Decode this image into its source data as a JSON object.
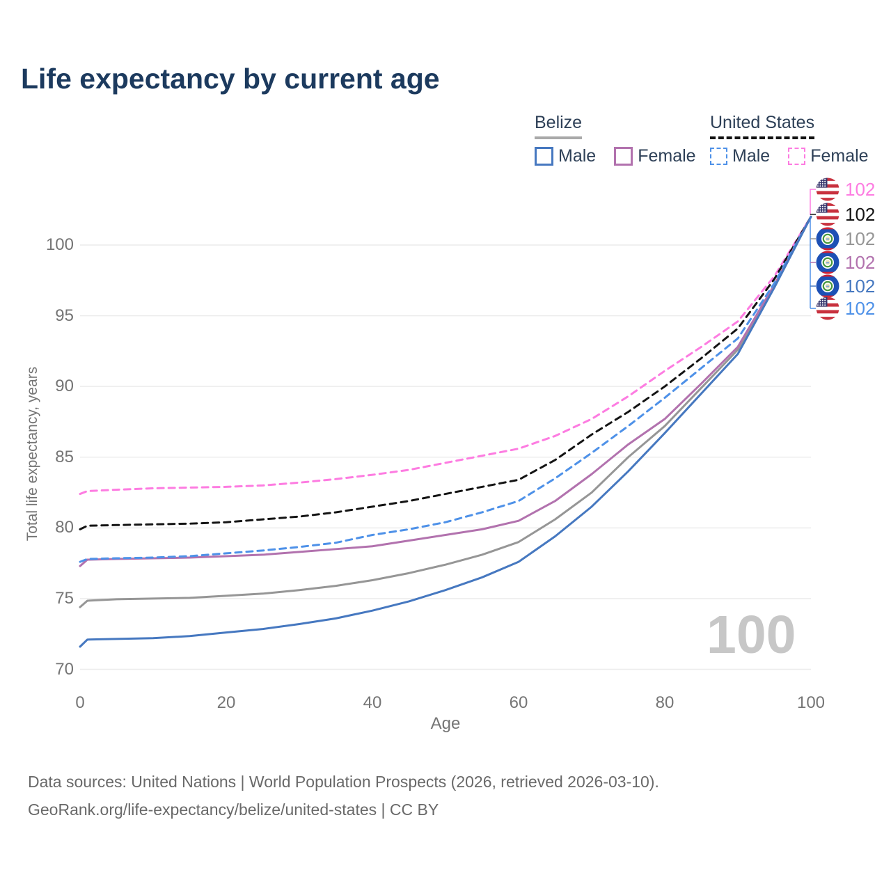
{
  "title": "Life expectancy by current age",
  "legend": {
    "groups": [
      {
        "name": "Belize",
        "line_style": "solid",
        "underline_color": "#a9a9a9",
        "items": [
          {
            "label": "Male",
            "color": "#4678c0"
          },
          {
            "label": "Female",
            "color": "#b272ae"
          }
        ]
      },
      {
        "name": "United States",
        "line_style": "dashed",
        "underline_color": "#121212",
        "items": [
          {
            "label": "Male",
            "color": "#4e91e8"
          },
          {
            "label": "Female",
            "color": "#fd7ce1"
          }
        ]
      }
    ]
  },
  "chart_data": {
    "type": "line",
    "title": "Life expectancy by current age",
    "xlabel": "Age",
    "ylabel": "Total life expectancy, years",
    "xlim": [
      0,
      100
    ],
    "ylim": [
      70,
      102
    ],
    "x_ticks": [
      0,
      20,
      40,
      60,
      80,
      100
    ],
    "y_ticks": [
      70,
      75,
      80,
      85,
      90,
      95,
      100
    ],
    "grid": "horizontal",
    "legend_position": "top-right",
    "x": [
      0,
      1,
      5,
      10,
      15,
      20,
      25,
      30,
      35,
      40,
      45,
      50,
      55,
      60,
      65,
      70,
      75,
      80,
      85,
      90,
      95,
      100
    ],
    "series": [
      {
        "name": "United States Female",
        "country": "United States",
        "sex": "female",
        "color": "#fd7ce1",
        "dash": true,
        "values": [
          82.4,
          82.6,
          82.7,
          82.8,
          82.85,
          82.9,
          83.0,
          83.2,
          83.45,
          83.75,
          84.1,
          84.6,
          85.1,
          85.6,
          86.5,
          87.7,
          89.3,
          91.1,
          92.8,
          94.6,
          97.8,
          102
        ]
      },
      {
        "name": "United States Total",
        "country": "United States",
        "sex": "total",
        "color": "#141414",
        "dash": true,
        "values": [
          79.9,
          80.15,
          80.2,
          80.25,
          80.3,
          80.4,
          80.6,
          80.8,
          81.1,
          81.5,
          81.9,
          82.4,
          82.9,
          83.4,
          84.8,
          86.6,
          88.2,
          90.0,
          92.0,
          94.1,
          97.6,
          102
        ]
      },
      {
        "name": "Belize Total",
        "country": "Belize",
        "sex": "total",
        "color": "#969696",
        "dash": false,
        "values": [
          74.4,
          74.85,
          74.95,
          75.0,
          75.05,
          75.2,
          75.35,
          75.6,
          75.9,
          76.3,
          76.8,
          77.4,
          78.1,
          79.0,
          80.6,
          82.5,
          85.0,
          87.2,
          89.9,
          92.6,
          97.1,
          102
        ]
      },
      {
        "name": "Belize Female",
        "country": "Belize",
        "sex": "female",
        "color": "#b272ae",
        "dash": false,
        "values": [
          77.3,
          77.75,
          77.8,
          77.85,
          77.9,
          78.0,
          78.1,
          78.3,
          78.5,
          78.7,
          79.1,
          79.5,
          79.9,
          80.5,
          81.9,
          83.8,
          85.9,
          87.7,
          90.2,
          92.8,
          97.2,
          102
        ]
      },
      {
        "name": "United States Male",
        "country": "United States",
        "sex": "male",
        "color": "#4e91e8",
        "dash": true,
        "values": [
          77.6,
          77.8,
          77.85,
          77.9,
          78.0,
          78.2,
          78.4,
          78.65,
          78.95,
          79.5,
          79.9,
          80.4,
          81.1,
          81.9,
          83.5,
          85.3,
          87.2,
          89.2,
          91.3,
          93.4,
          97.3,
          102
        ]
      },
      {
        "name": "Belize Male",
        "country": "Belize",
        "sex": "male",
        "color": "#4678c0",
        "dash": false,
        "values": [
          71.6,
          72.1,
          72.15,
          72.2,
          72.35,
          72.6,
          72.85,
          73.2,
          73.6,
          74.15,
          74.8,
          75.6,
          76.5,
          77.6,
          79.4,
          81.5,
          84.0,
          86.7,
          89.5,
          92.3,
          97.0,
          102
        ]
      }
    ]
  },
  "end_labels": [
    {
      "series": "United States Female",
      "flag": "us",
      "value": "102",
      "color": "#fd7ce1"
    },
    {
      "series": "United States Total",
      "flag": "us",
      "value": "102",
      "color": "#141414"
    },
    {
      "series": "Belize Total",
      "flag": "belize",
      "value": "102",
      "color": "#969696"
    },
    {
      "series": "Belize Female",
      "flag": "belize",
      "value": "102",
      "color": "#b272ae"
    },
    {
      "series": "Belize Male",
      "flag": "belize",
      "value": "102",
      "color": "#4678c0"
    },
    {
      "series": "United States Male",
      "flag": "us",
      "value": "102",
      "color": "#4e91e8"
    }
  ],
  "watermark": "100",
  "footer": {
    "line1": "Data sources: United Nations | World Population Prospects (2026, retrieved 2026-03-10).",
    "line2": "GeoRank.org/life-expectancy/belize/united-states | CC BY"
  }
}
